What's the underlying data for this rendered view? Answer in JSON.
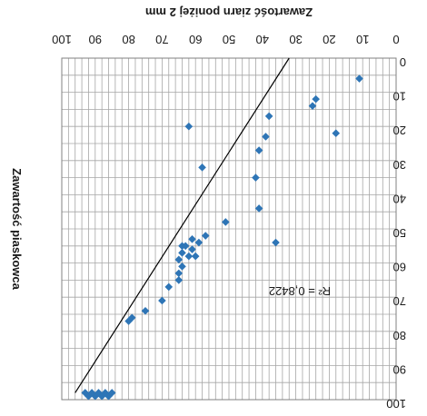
{
  "chart_data": {
    "type": "scatter",
    "title": "",
    "xlabel": "Zawartość ziarn poniżej 2 mm",
    "ylabel": "Zawartość piaskowca",
    "orientation": "rotated-180",
    "xlim": [
      0,
      100
    ],
    "ylim": [
      0,
      100
    ],
    "x_ticks": [
      "0",
      "10",
      "20",
      "30",
      "40",
      "50",
      "60",
      "70",
      "80",
      "90",
      "100"
    ],
    "y_ticks": [
      "0",
      "10",
      "20",
      "30",
      "40",
      "50",
      "60",
      "70",
      "80",
      "90",
      "100"
    ],
    "grid": true,
    "series": [
      {
        "color": "#2e75b6",
        "points": [
          [
            93,
            98
          ],
          [
            92,
            99
          ],
          [
            91,
            98
          ],
          [
            90,
            99
          ],
          [
            89,
            98
          ],
          [
            88,
            99
          ],
          [
            87,
            98
          ],
          [
            86,
            99
          ],
          [
            85,
            98
          ],
          [
            80,
            77
          ],
          [
            79,
            76
          ],
          [
            75,
            74
          ],
          [
            70,
            71
          ],
          [
            68,
            67
          ],
          [
            65,
            65
          ],
          [
            65,
            63
          ],
          [
            65,
            59
          ],
          [
            64,
            61
          ],
          [
            64,
            57
          ],
          [
            64,
            55
          ],
          [
            63,
            55
          ],
          [
            62,
            58
          ],
          [
            61,
            56
          ],
          [
            61,
            53
          ],
          [
            60,
            58
          ],
          [
            59,
            54
          ],
          [
            57,
            52
          ],
          [
            51,
            48
          ],
          [
            36,
            54
          ],
          [
            41,
            44
          ],
          [
            42,
            35
          ],
          [
            41,
            27
          ],
          [
            39,
            23
          ],
          [
            38,
            17
          ],
          [
            58,
            32
          ],
          [
            62,
            20
          ],
          [
            24,
            12
          ],
          [
            25,
            14
          ],
          [
            18,
            22
          ],
          [
            11,
            6
          ]
        ]
      }
    ],
    "trendline": {
      "type": "linear",
      "points": [
        [
          96,
          98
        ],
        [
          32,
          0
        ]
      ],
      "label": "R² = 0,8422"
    }
  }
}
